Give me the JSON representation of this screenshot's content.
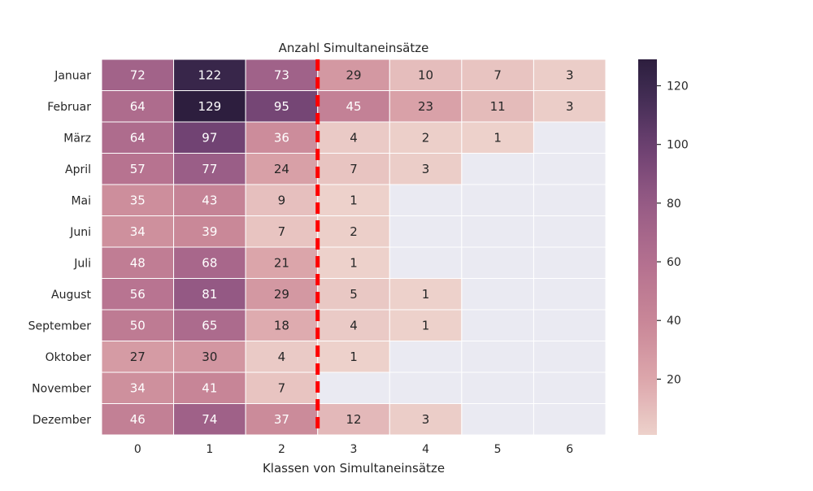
{
  "chart_data": {
    "type": "heatmap",
    "title": "Anzahl Simultaneinsätze",
    "xlabel": "Klassen von Simultaneinsätze",
    "ylabel": "",
    "x_categories": [
      "0",
      "1",
      "2",
      "3",
      "4",
      "5",
      "6"
    ],
    "y_categories": [
      "Januar",
      "Februar",
      "März",
      "April",
      "Mai",
      "Juni",
      "Juli",
      "August",
      "September",
      "Oktober",
      "November",
      "Dezember"
    ],
    "values": [
      [
        72,
        122,
        73,
        29,
        10,
        7,
        3
      ],
      [
        64,
        129,
        95,
        45,
        23,
        11,
        3
      ],
      [
        64,
        97,
        36,
        4,
        2,
        1,
        null
      ],
      [
        57,
        77,
        24,
        7,
        3,
        null,
        null
      ],
      [
        35,
        43,
        9,
        1,
        null,
        null,
        null
      ],
      [
        34,
        39,
        7,
        2,
        null,
        null,
        null
      ],
      [
        48,
        68,
        21,
        1,
        null,
        null,
        null
      ],
      [
        56,
        81,
        29,
        5,
        1,
        null,
        null
      ],
      [
        50,
        65,
        18,
        4,
        1,
        null,
        null
      ],
      [
        27,
        30,
        4,
        1,
        null,
        null,
        null
      ],
      [
        34,
        41,
        7,
        null,
        null,
        null,
        null
      ],
      [
        46,
        74,
        37,
        12,
        3,
        null,
        null
      ]
    ],
    "colorbar": {
      "range": [
        1,
        129
      ],
      "ticks": [
        "20",
        "40",
        "60",
        "80",
        "100",
        "120"
      ]
    },
    "annotations": {
      "reference_line": {
        "type": "vertical dashed",
        "between_columns": [
          "2",
          "3"
        ],
        "color": "#ff0000"
      }
    },
    "colors": {
      "missing": "#eaeaf2",
      "low": "#edd1cb",
      "high": "#2d1e3e"
    }
  }
}
